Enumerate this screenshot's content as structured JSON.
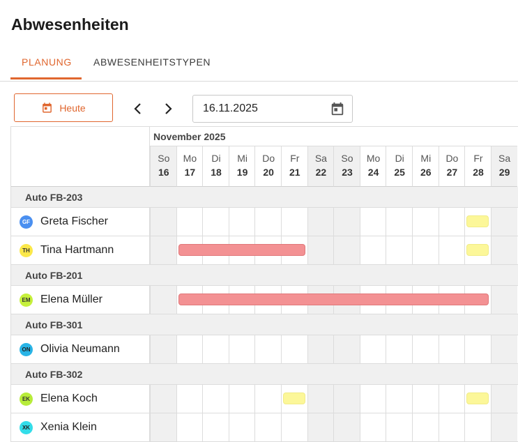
{
  "page": {
    "title": "Abwesenheiten"
  },
  "tabs": [
    {
      "label": "PLANUNG",
      "active": true
    },
    {
      "label": "ABWESENHEITSTYPEN",
      "active": false
    }
  ],
  "toolbar": {
    "today_label": "Heute",
    "date_value": "16.11.2025",
    "accent_color": "#e0662e"
  },
  "calendar": {
    "month_label": "November 2025",
    "days": [
      {
        "name": "So",
        "num": "16",
        "weekend": true
      },
      {
        "name": "Mo",
        "num": "17",
        "weekend": false
      },
      {
        "name": "Di",
        "num": "18",
        "weekend": false
      },
      {
        "name": "Mi",
        "num": "19",
        "weekend": false
      },
      {
        "name": "Do",
        "num": "20",
        "weekend": false
      },
      {
        "name": "Fr",
        "num": "21",
        "weekend": false
      },
      {
        "name": "Sa",
        "num": "22",
        "weekend": true
      },
      {
        "name": "So",
        "num": "23",
        "weekend": true
      },
      {
        "name": "Mo",
        "num": "24",
        "weekend": false
      },
      {
        "name": "Di",
        "num": "25",
        "weekend": false
      },
      {
        "name": "Mi",
        "num": "26",
        "weekend": false
      },
      {
        "name": "Do",
        "num": "27",
        "weekend": false
      },
      {
        "name": "Fr",
        "num": "28",
        "weekend": false
      },
      {
        "name": "Sa",
        "num": "29",
        "weekend": true
      }
    ]
  },
  "groups": [
    {
      "label": "Auto FB-203",
      "people": [
        {
          "initials": "GF",
          "name": "Greta Fischer",
          "avatar_color": "#4a8ff0",
          "avatar_text_color": "#ffffff",
          "absences": [
            {
              "start": 12,
              "end": 12,
              "color": "yellow"
            }
          ]
        },
        {
          "initials": "TH",
          "name": "Tina Hartmann",
          "avatar_color": "#fbe84a",
          "avatar_text_color": "#333333",
          "absences": [
            {
              "start": 1,
              "end": 5,
              "color": "red"
            },
            {
              "start": 12,
              "end": 12,
              "color": "yellow"
            }
          ]
        }
      ]
    },
    {
      "label": "Auto FB-201",
      "people": [
        {
          "initials": "EM",
          "name": "Elena Müller",
          "avatar_color": "#c6f03c",
          "avatar_text_color": "#333333",
          "absences": [
            {
              "start": 1,
              "end": 12,
              "color": "red"
            }
          ]
        }
      ]
    },
    {
      "label": "Auto FB-301",
      "people": [
        {
          "initials": "ON",
          "name": "Olivia Neumann",
          "avatar_color": "#29b4e6",
          "avatar_text_color": "#222222",
          "absences": []
        }
      ]
    },
    {
      "label": "Auto FB-302",
      "people": [
        {
          "initials": "EK",
          "name": "Elena Koch",
          "avatar_color": "#b7ec3a",
          "avatar_text_color": "#333333",
          "absences": [
            {
              "start": 5,
              "end": 5,
              "color": "yellow"
            },
            {
              "start": 12,
              "end": 12,
              "color": "yellow"
            }
          ]
        },
        {
          "initials": "XK",
          "name": "Xenia Klein",
          "avatar_color": "#33dde9",
          "avatar_text_color": "#222222",
          "absences": []
        }
      ]
    }
  ]
}
